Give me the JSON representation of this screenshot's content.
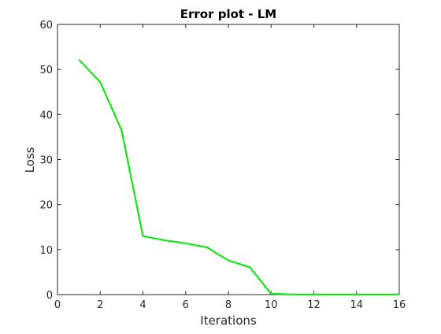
{
  "chart_data": {
    "type": "line",
    "title": "Error plot - LM",
    "xlabel": "Iterations",
    "ylabel": "Loss",
    "xlim": [
      0,
      16
    ],
    "ylim": [
      0,
      60
    ],
    "xticks": [
      "0",
      "2",
      "4",
      "6",
      "8",
      "10",
      "12",
      "14",
      "16"
    ],
    "yticks": [
      "0",
      "10",
      "20",
      "30",
      "40",
      "50",
      "60"
    ],
    "grid": false,
    "series": [
      {
        "color": "#00e600",
        "x": [
          1,
          2,
          3,
          4,
          5,
          6,
          7,
          8,
          9,
          10,
          11,
          12,
          13,
          14,
          15,
          16
        ],
        "y": [
          52.2,
          47.2,
          36.5,
          13.0,
          12.1,
          11.4,
          10.5,
          7.6,
          6.1,
          0.2,
          0.05,
          0.05,
          0.05,
          0.05,
          0.05,
          0.05
        ]
      }
    ]
  }
}
